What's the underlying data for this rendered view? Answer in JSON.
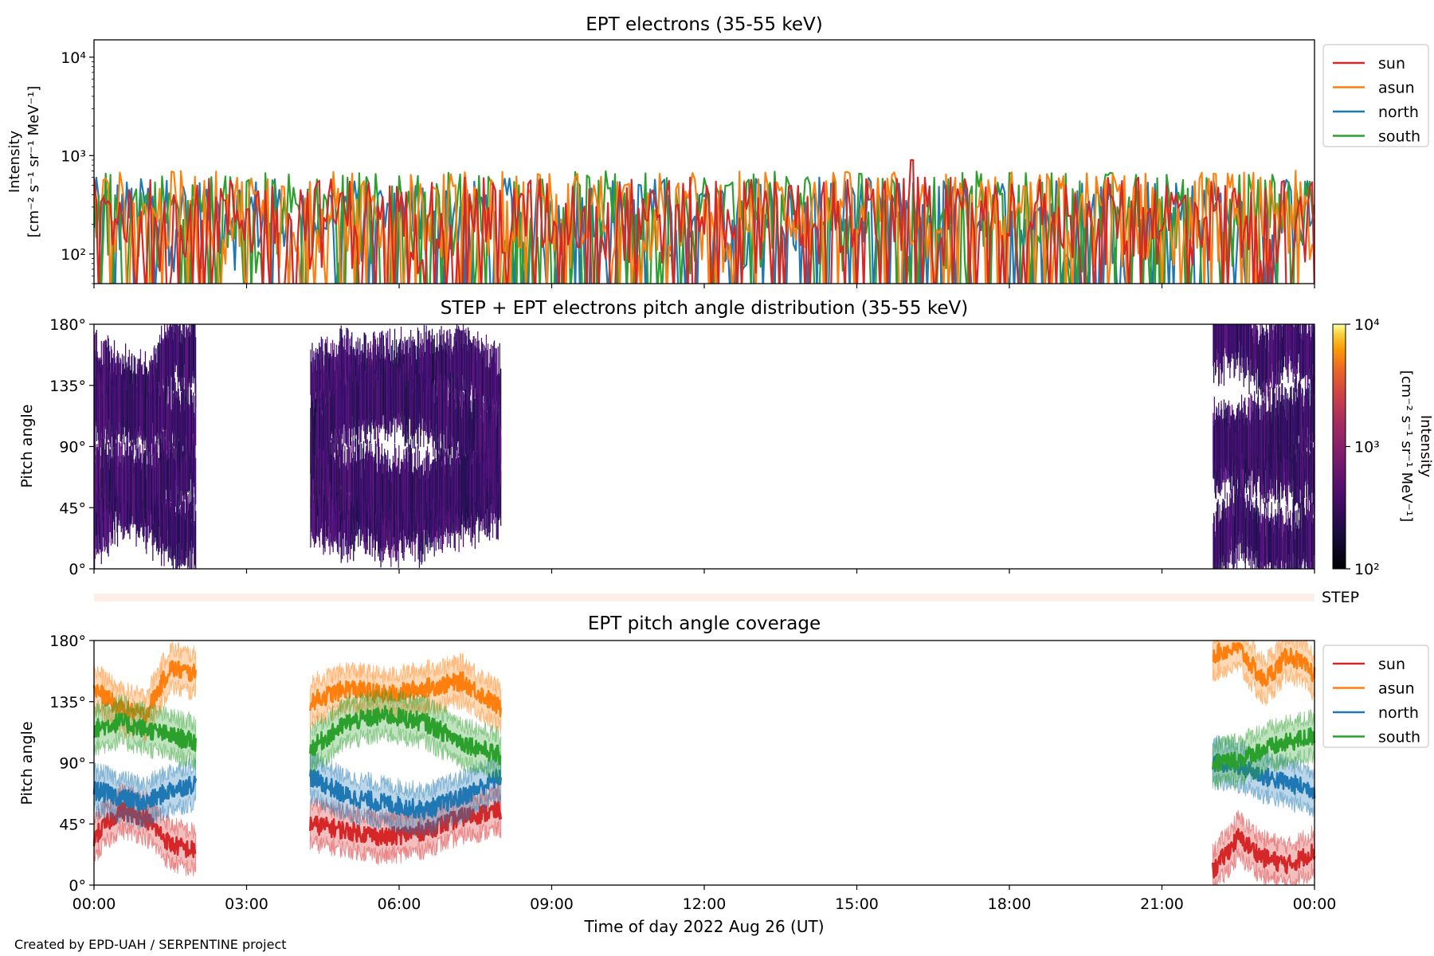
{
  "panels": {
    "intensity": {
      "title": "EPT electrons (35-55 keV)",
      "ylabel_line1": "Intensity",
      "ylabel_line2": "[cm⁻² s⁻¹ sr⁻¹ MeV⁻¹]"
    },
    "pad": {
      "title": "STEP + EPT electrons pitch angle distribution (35-55 keV)",
      "ylabel": "Pitch angle",
      "colorbar_label_line1": "Intensity",
      "colorbar_label_line2": "[cm⁻² s⁻¹ sr⁻¹ MeV⁻¹]"
    },
    "step": {
      "label": "STEP"
    },
    "coverage": {
      "title": "EPT pitch angle coverage",
      "ylabel": "Pitch angle",
      "xlabel": "Time of day 2022 Aug 26 (UT)"
    }
  },
  "footer": {
    "credit": "Created by EPD-UAH / SERPENTINE project"
  },
  "chart_data": [
    {
      "type": "line",
      "title": "EPT electrons (35-55 keV)",
      "ylabel": "Intensity [cm⁻² s⁻¹ sr⁻¹ MeV⁻¹]",
      "yscale": "log",
      "ylim": [
        50,
        15000
      ],
      "ytick_labels": [
        "10²",
        "10³",
        "10⁴"
      ],
      "xlim": [
        "00:00",
        "24:00"
      ],
      "legend_position": "outside-right",
      "series": [
        {
          "name": "sun",
          "color": "#d62728",
          "typical_range": [
            50,
            600
          ],
          "peak": {
            "x": "16:05",
            "y": 900
          }
        },
        {
          "name": "asun",
          "color": "#ff7f0e",
          "typical_range": [
            50,
            700
          ]
        },
        {
          "name": "north",
          "color": "#1f77b4",
          "typical_range": [
            50,
            600
          ]
        },
        {
          "name": "south",
          "color": "#2ca02c",
          "typical_range": [
            50,
            700
          ]
        }
      ]
    },
    {
      "type": "heatmap",
      "title": "STEP + EPT electrons pitch angle distribution (35-55 keV)",
      "ylabel": "Pitch angle",
      "ylim": [
        0,
        180
      ],
      "ytick_labels": [
        "0°",
        "45°",
        "90°",
        "135°",
        "180°"
      ],
      "colorbar": {
        "scale": "log",
        "range": [
          100,
          10000
        ],
        "tick_labels": [
          "10²",
          "10³",
          "10⁴"
        ],
        "colormap": "inferno"
      },
      "data_intervals": [
        [
          "00:00",
          "02:00"
        ],
        [
          "04:15",
          "08:00"
        ],
        [
          "22:00",
          "24:00"
        ]
      ]
    },
    {
      "type": "line",
      "title": "EPT pitch angle coverage",
      "ylabel": "Pitch angle",
      "xlabel": "Time of day 2022 Aug 26 (UT)",
      "ylim": [
        0,
        180
      ],
      "ytick_labels": [
        "0°",
        "45°",
        "90°",
        "135°",
        "180°"
      ],
      "xtick_labels": [
        "00:00",
        "03:00",
        "06:00",
        "09:00",
        "12:00",
        "15:00",
        "18:00",
        "21:00",
        "00:00"
      ],
      "legend_position": "outside-right",
      "series": [
        {
          "name": "sun",
          "color": "#d62728",
          "segments": [
            {
              "t": [
                "00:00",
                "00:30",
                "01:00",
                "01:30",
                "02:00"
              ],
              "y": [
                35,
                55,
                50,
                30,
                25
              ]
            },
            {
              "t": [
                "04:15",
                "05:00",
                "05:45",
                "06:30",
                "07:15",
                "08:00"
              ],
              "y": [
                45,
                40,
                35,
                40,
                50,
                55
              ]
            },
            {
              "t": [
                "22:00",
                "22:30",
                "23:00",
                "23:30",
                "24:00"
              ],
              "y": [
                10,
                35,
                20,
                15,
                25
              ]
            }
          ]
        },
        {
          "name": "asun",
          "color": "#ff7f0e",
          "segments": [
            {
              "t": [
                "00:00",
                "00:30",
                "01:00",
                "01:30",
                "02:00"
              ],
              "y": [
                145,
                130,
                125,
                160,
                155
              ]
            },
            {
              "t": [
                "04:15",
                "05:00",
                "05:45",
                "06:30",
                "07:15",
                "08:00"
              ],
              "y": [
                135,
                145,
                140,
                145,
                150,
                130
              ]
            },
            {
              "t": [
                "22:00",
                "22:30",
                "23:00",
                "23:30",
                "24:00"
              ],
              "y": [
                170,
                175,
                150,
                170,
                155
              ]
            }
          ]
        },
        {
          "name": "north",
          "color": "#1f77b4",
          "segments": [
            {
              "t": [
                "00:00",
                "00:30",
                "01:00",
                "01:30",
                "02:00"
              ],
              "y": [
                70,
                65,
                60,
                70,
                75
              ]
            },
            {
              "t": [
                "04:15",
                "05:00",
                "05:45",
                "06:30",
                "07:15",
                "08:00"
              ],
              "y": [
                80,
                65,
                60,
                55,
                65,
                80
              ]
            },
            {
              "t": [
                "22:00",
                "22:30",
                "23:00",
                "23:30",
                "24:00"
              ],
              "y": [
                90,
                88,
                80,
                75,
                70
              ]
            }
          ]
        },
        {
          "name": "south",
          "color": "#2ca02c",
          "segments": [
            {
              "t": [
                "00:00",
                "00:30",
                "01:00",
                "01:30",
                "02:00"
              ],
              "y": [
                115,
                120,
                115,
                110,
                105
              ]
            },
            {
              "t": [
                "04:15",
                "05:00",
                "05:45",
                "06:30",
                "07:15",
                "08:00"
              ],
              "y": [
                100,
                120,
                125,
                120,
                105,
                95
              ]
            },
            {
              "t": [
                "22:00",
                "22:30",
                "23:00",
                "23:30",
                "24:00"
              ],
              "y": [
                90,
                92,
                100,
                105,
                110
              ]
            }
          ]
        }
      ]
    }
  ]
}
